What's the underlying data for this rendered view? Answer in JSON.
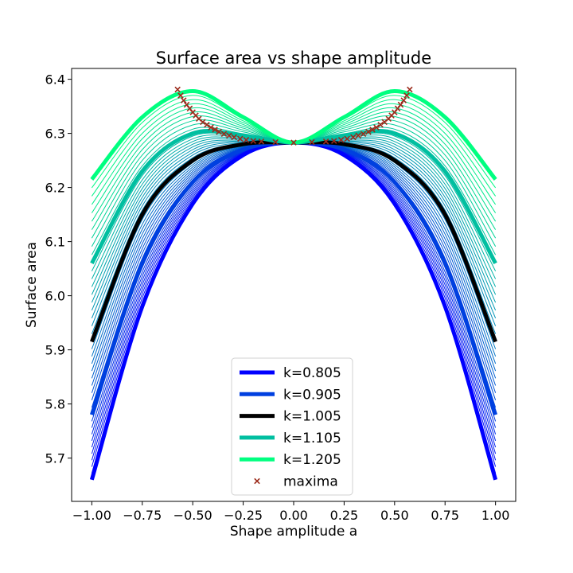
{
  "chart_data": {
    "type": "line",
    "title": "Surface area vs shape amplitude",
    "xlabel": "Shape amplitude a",
    "ylabel": "Surface area",
    "xlim": [
      -1.1,
      1.1
    ],
    "ylim": [
      5.62,
      6.42
    ],
    "xticks": [
      "−1.00",
      "−0.75",
      "−0.50",
      "−0.25",
      "0.00",
      "0.25",
      "0.50",
      "0.75",
      "1.00"
    ],
    "yticks": [
      "5.7",
      "5.8",
      "5.9",
      "6.0",
      "6.1",
      "6.2",
      "6.3",
      "6.4"
    ],
    "grid": false,
    "legend_position": "lower-center",
    "family": {
      "k_start": 0.805,
      "k_step": 0.01,
      "k_count": 41,
      "color_start": "#0000ff",
      "color_end": "#00ff80",
      "thin_note": "thin curves for intermediate k"
    },
    "series": [
      {
        "name": "k=0.805",
        "k": 0.805,
        "color": "#0000ff",
        "a": [
          -1.0,
          -0.75,
          -0.5,
          -0.25,
          0.0,
          0.25,
          0.5,
          0.75,
          1.0
        ],
        "values": [
          5.66,
          5.98,
          6.17,
          6.26,
          6.283,
          6.26,
          6.17,
          5.98,
          5.66
        ]
      },
      {
        "name": "k=0.905",
        "k": 0.905,
        "color": "#0040e0",
        "a": [
          -1.0,
          -0.75,
          -0.5,
          -0.25,
          0.0,
          0.25,
          0.5,
          0.75,
          1.0
        ],
        "values": [
          5.78,
          6.06,
          6.21,
          6.27,
          6.283,
          6.27,
          6.21,
          6.06,
          5.78
        ]
      },
      {
        "name": "k=1.005",
        "k": 1.005,
        "color": "#000000",
        "a": [
          -1.0,
          -0.75,
          -0.5,
          -0.25,
          0.0,
          0.25,
          0.5,
          0.75,
          1.0
        ],
        "values": [
          5.915,
          6.15,
          6.25,
          6.28,
          6.283,
          6.28,
          6.25,
          6.15,
          5.915
        ]
      },
      {
        "name": "k=1.105",
        "k": 1.105,
        "color": "#00bfa0",
        "a": [
          -1.0,
          -0.75,
          -0.5,
          -0.25,
          0.0,
          0.25,
          0.5,
          0.75,
          1.0
        ],
        "values": [
          6.06,
          6.23,
          6.3,
          6.296,
          6.283,
          6.296,
          6.3,
          6.23,
          6.06
        ]
      },
      {
        "name": "k=1.205",
        "k": 1.205,
        "color": "#00ff80",
        "a": [
          -1.0,
          -0.75,
          -0.5,
          -0.25,
          0.0,
          0.25,
          0.5,
          0.75,
          1.0
        ],
        "values": [
          6.215,
          6.33,
          6.378,
          6.33,
          6.283,
          6.33,
          6.378,
          6.33,
          6.215
        ]
      }
    ],
    "maxima": {
      "name": "maxima",
      "color": "#9b2a1a",
      "marker": "x",
      "points": [
        {
          "x": -0.575,
          "y": 6.381
        },
        {
          "x": -0.56,
          "y": 6.37
        },
        {
          "x": -0.545,
          "y": 6.361
        },
        {
          "x": -0.53,
          "y": 6.353
        },
        {
          "x": -0.515,
          "y": 6.346
        },
        {
          "x": -0.5,
          "y": 6.339
        },
        {
          "x": -0.485,
          "y": 6.333
        },
        {
          "x": -0.47,
          "y": 6.327
        },
        {
          "x": -0.45,
          "y": 6.321
        },
        {
          "x": -0.43,
          "y": 6.316
        },
        {
          "x": -0.41,
          "y": 6.311
        },
        {
          "x": -0.39,
          "y": 6.307
        },
        {
          "x": -0.37,
          "y": 6.303
        },
        {
          "x": -0.345,
          "y": 6.299
        },
        {
          "x": -0.32,
          "y": 6.296
        },
        {
          "x": -0.295,
          "y": 6.293
        },
        {
          "x": -0.265,
          "y": 6.29
        },
        {
          "x": -0.235,
          "y": 6.288
        },
        {
          "x": -0.2,
          "y": 6.286
        },
        {
          "x": -0.16,
          "y": 6.285
        },
        {
          "x": -0.09,
          "y": 6.284
        },
        {
          "x": 0.0,
          "y": 6.283
        },
        {
          "x": 0.09,
          "y": 6.284
        },
        {
          "x": 0.16,
          "y": 6.285
        },
        {
          "x": 0.2,
          "y": 6.286
        },
        {
          "x": 0.235,
          "y": 6.288
        },
        {
          "x": 0.265,
          "y": 6.29
        },
        {
          "x": 0.295,
          "y": 6.293
        },
        {
          "x": 0.32,
          "y": 6.296
        },
        {
          "x": 0.345,
          "y": 6.299
        },
        {
          "x": 0.37,
          "y": 6.303
        },
        {
          "x": 0.39,
          "y": 6.307
        },
        {
          "x": 0.41,
          "y": 6.311
        },
        {
          "x": 0.43,
          "y": 6.316
        },
        {
          "x": 0.45,
          "y": 6.321
        },
        {
          "x": 0.47,
          "y": 6.327
        },
        {
          "x": 0.485,
          "y": 6.333
        },
        {
          "x": 0.5,
          "y": 6.339
        },
        {
          "x": 0.515,
          "y": 6.346
        },
        {
          "x": 0.53,
          "y": 6.353
        },
        {
          "x": 0.545,
          "y": 6.361
        },
        {
          "x": 0.56,
          "y": 6.37
        },
        {
          "x": 0.575,
          "y": 6.381
        }
      ]
    }
  }
}
